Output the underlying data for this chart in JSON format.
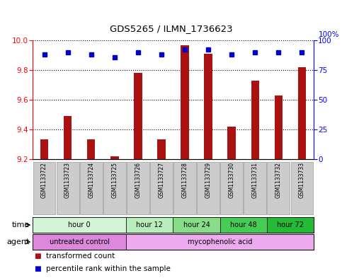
{
  "title": "GDS5265 / ILMN_1736623",
  "samples": [
    "GSM1133722",
    "GSM1133723",
    "GSM1133724",
    "GSM1133725",
    "GSM1133726",
    "GSM1133727",
    "GSM1133728",
    "GSM1133729",
    "GSM1133730",
    "GSM1133731",
    "GSM1133732",
    "GSM1133733"
  ],
  "bar_values": [
    9.335,
    9.49,
    9.335,
    9.22,
    9.78,
    9.335,
    9.965,
    9.91,
    9.42,
    9.73,
    9.63,
    9.82
  ],
  "dot_values_pct": [
    88,
    90,
    88,
    86,
    90,
    88,
    92,
    92,
    88,
    90,
    90,
    90
  ],
  "ylim_left": [
    9.2,
    10.0
  ],
  "ylim_right": [
    0,
    100
  ],
  "yticks_left": [
    9.2,
    9.4,
    9.6,
    9.8,
    10.0
  ],
  "yticks_right": [
    0,
    25,
    50,
    75,
    100
  ],
  "bar_color": "#aa1111",
  "dot_color": "#0000cc",
  "bar_bottom": 9.2,
  "time_groups": [
    {
      "label": "hour 0",
      "start": 0,
      "end": 4,
      "color": "#d4f5d4"
    },
    {
      "label": "hour 12",
      "start": 4,
      "end": 6,
      "color": "#b8eebb"
    },
    {
      "label": "hour 24",
      "start": 6,
      "end": 8,
      "color": "#88dd88"
    },
    {
      "label": "hour 48",
      "start": 8,
      "end": 10,
      "color": "#44cc55"
    },
    {
      "label": "hour 72",
      "start": 10,
      "end": 12,
      "color": "#22bb33"
    }
  ],
  "agent_groups": [
    {
      "label": "untreated control",
      "start": 0,
      "end": 4,
      "color": "#dd88dd"
    },
    {
      "label": "mycophenolic acid",
      "start": 4,
      "end": 12,
      "color": "#eeaaee"
    }
  ],
  "legend_items": [
    {
      "label": "transformed count",
      "color": "#aa1111"
    },
    {
      "label": "percentile rank within the sample",
      "color": "#0000cc"
    }
  ],
  "sample_box_color": "#cccccc",
  "sample_box_edge": "#999999",
  "grid_color": "#000000",
  "bg_color": "#ffffff",
  "border_color": "#000000"
}
